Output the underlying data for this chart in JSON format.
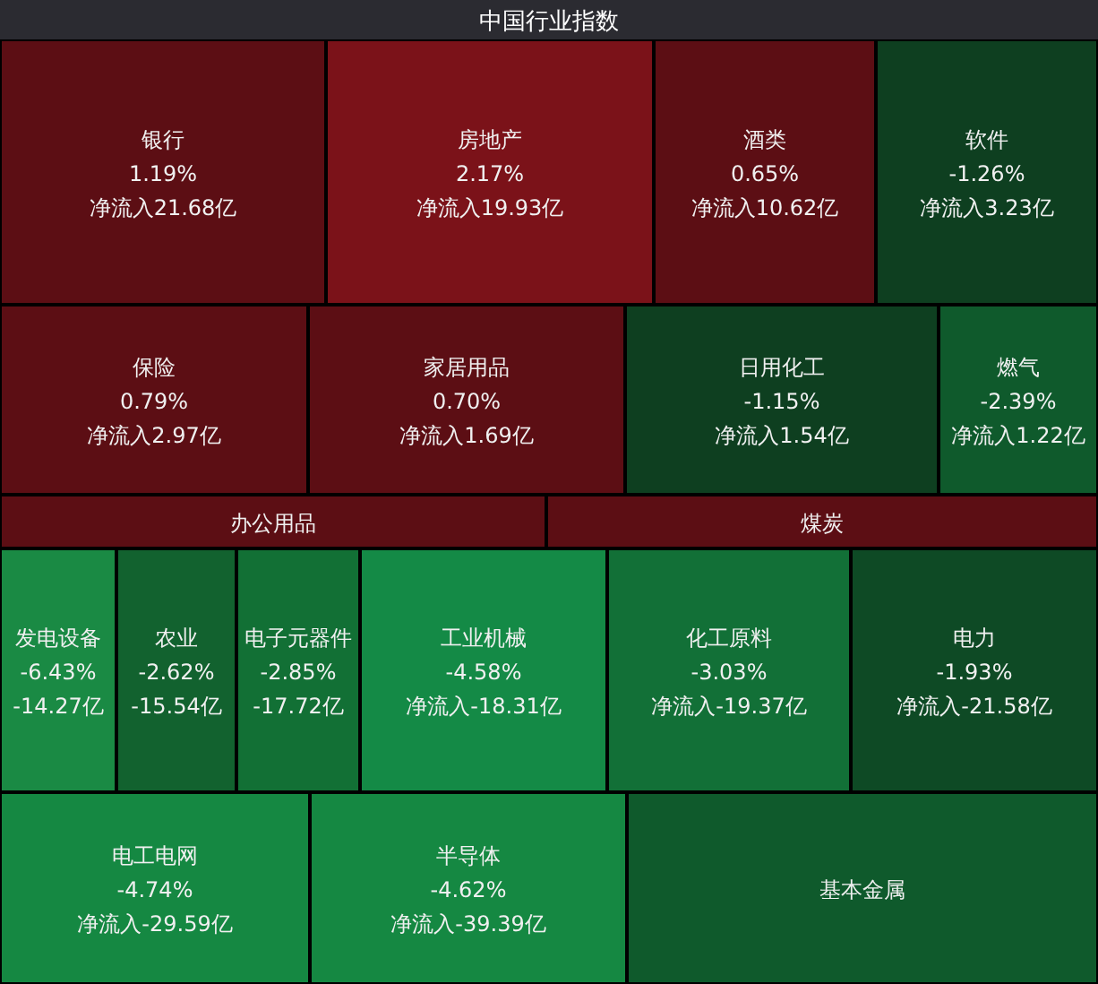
{
  "chart_data": {
    "type": "other",
    "title": "中国行业指数",
    "categories": [
      "银行",
      "房地产",
      "酒类",
      "软件",
      "保险",
      "家居用品",
      "日用化工",
      "燃气",
      "办公用品",
      "煤炭",
      "发电设备",
      "农业",
      "电子元器件",
      "工业机械",
      "化工原料",
      "电力",
      "电工电网",
      "半导体",
      "基本金属"
    ],
    "series": [
      {
        "colors": [
          "#5c0e14",
          "#7b1219",
          "#5c0e14",
          "#0e3f20",
          "#5c0e14",
          "#5c0e14",
          "#0e3f20",
          "#0f5a2c",
          "#5c0e14",
          "#5c0e14",
          "#1a8a44",
          "#12622f",
          "#127035",
          "#148a46",
          "#127037",
          "#0e4a25",
          "#158842",
          "#158842",
          "#0f5a2c"
        ],
        "values": [
          1.19,
          2.17,
          0.65,
          -1.26,
          0.79,
          0.7,
          -1.15,
          -2.39,
          null,
          null,
          -6.43,
          -2.62,
          -2.85,
          -4.58,
          -3.03,
          -1.93,
          -4.74,
          -4.62,
          null
        ],
        "value_labels": [
          "1.19%",
          "2.17%",
          "0.65%",
          "-1.26%",
          "0.79%",
          "0.70%",
          "-1.15%",
          "-2.39%",
          null,
          null,
          "-6.43%",
          "-2.62%",
          "-2.85%",
          "-4.58%",
          "-3.03%",
          "-1.93%",
          "-4.74%",
          "-4.62%",
          null
        ]
      },
      {
        "values": [
          21.68,
          19.93,
          10.62,
          3.23,
          2.97,
          1.69,
          1.54,
          1.22,
          null,
          null,
          -14.27,
          -15.54,
          -17.72,
          -18.31,
          -19.37,
          -21.58,
          -29.59,
          -39.39,
          null
        ],
        "value_labels": [
          "净流入21.68亿",
          "净流入19.93亿",
          "净流入10.62亿",
          "净流入3.23亿",
          "净流入2.97亿",
          "净流入1.69亿",
          "净流入1.54亿",
          "净流入1.22亿",
          null,
          null,
          "-14.27亿",
          "-15.54亿",
          "-17.72亿",
          "净流入-18.31亿",
          "净流入-19.37亿",
          "净流入-21.58亿",
          "净流入-29.59亿",
          "净流入-39.39亿",
          null
        ]
      }
    ]
  }
}
